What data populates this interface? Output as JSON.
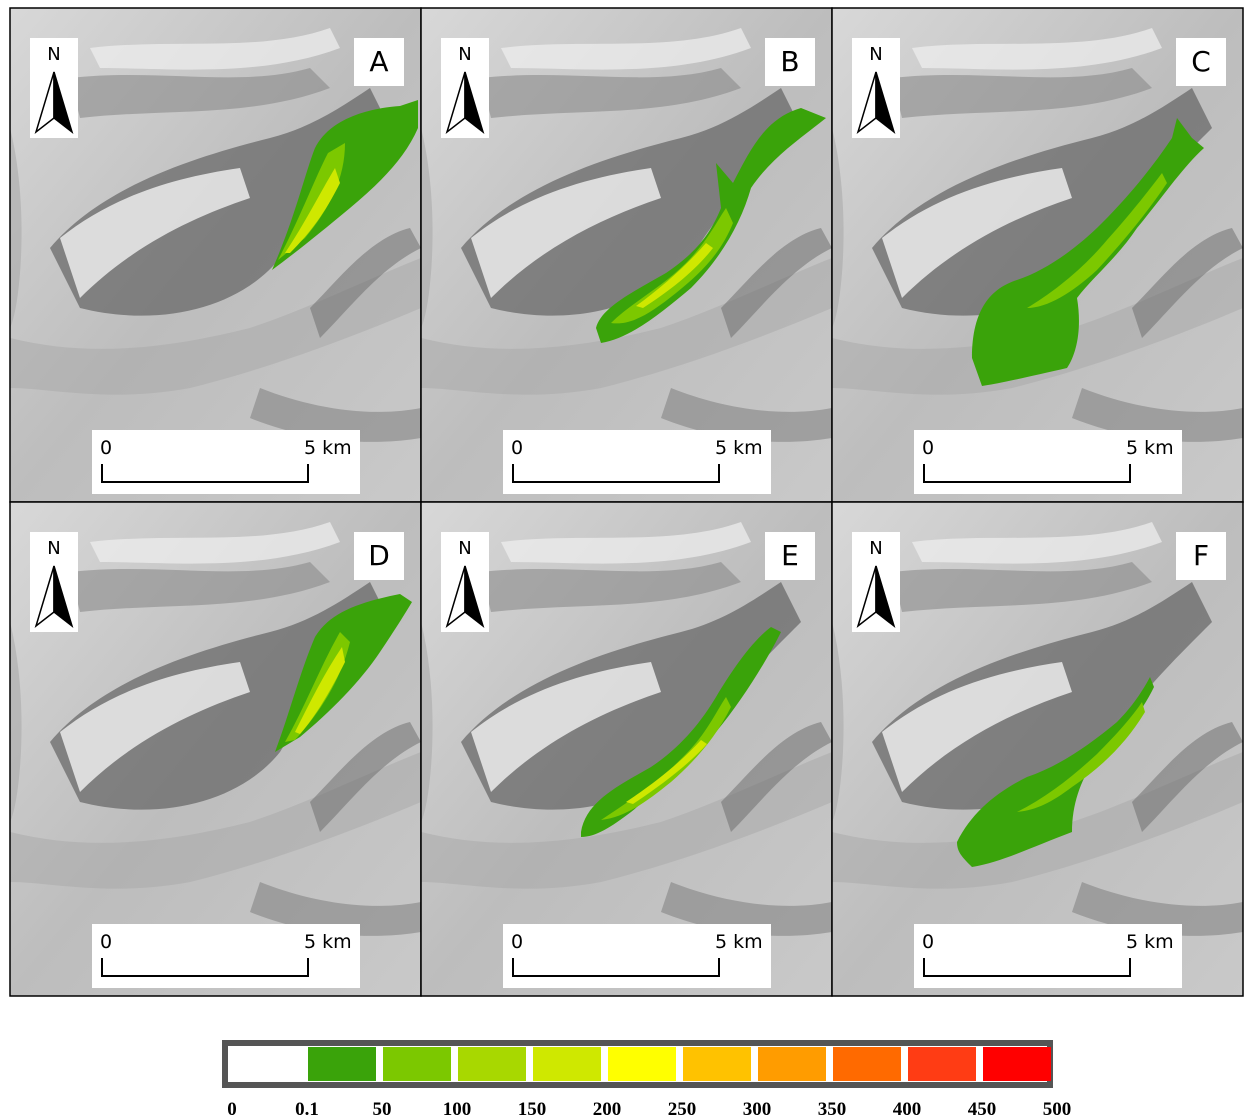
{
  "panels": [
    {
      "label": "A",
      "north": "N",
      "scale_start": "0",
      "scale_end": "5 km"
    },
    {
      "label": "B",
      "north": "N",
      "scale_start": "0",
      "scale_end": "5 km"
    },
    {
      "label": "C",
      "north": "N",
      "scale_start": "0",
      "scale_end": "5 km"
    },
    {
      "label": "D",
      "north": "N",
      "scale_start": "0",
      "scale_end": "5 km"
    },
    {
      "label": "E",
      "north": "N",
      "scale_start": "0",
      "scale_end": "5 km"
    },
    {
      "label": "F",
      "north": "N",
      "scale_start": "0",
      "scale_end": "5 km"
    }
  ],
  "legend": {
    "colors": [
      "#ffffff",
      "#3aa30a",
      "#7cc800",
      "#a8d800",
      "#cfe800",
      "#ffff00",
      "#ffc200",
      "#ff9c00",
      "#ff6a00",
      "#ff3c14",
      "#ff0000"
    ],
    "ticks": [
      0,
      0.1,
      50,
      100,
      150,
      200,
      250,
      300,
      350,
      400,
      450,
      500
    ]
  }
}
